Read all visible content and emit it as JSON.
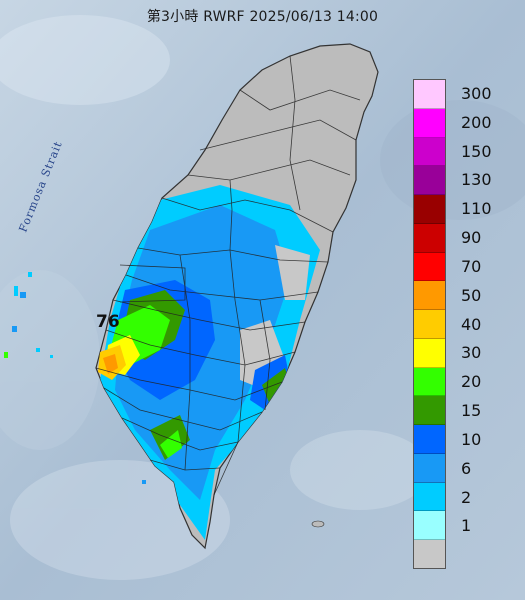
{
  "title": "第3小時  RWRF 2025/06/13 14:00",
  "sea_label": "Formosa Strait",
  "max_value_label": "76",
  "legend": [
    {
      "label": "300",
      "color": "#ffc8ff"
    },
    {
      "label": "200",
      "color": "#ff00ff"
    },
    {
      "label": "150",
      "color": "#cc00cc"
    },
    {
      "label": "130",
      "color": "#990099"
    },
    {
      "label": "110",
      "color": "#990000"
    },
    {
      "label": "90",
      "color": "#cc0000"
    },
    {
      "label": "70",
      "color": "#ff0000"
    },
    {
      "label": "50",
      "color": "#ff9900"
    },
    {
      "label": "40",
      "color": "#ffcc00"
    },
    {
      "label": "30",
      "color": "#ffff00"
    },
    {
      "label": "20",
      "color": "#33ff00"
    },
    {
      "label": "15",
      "color": "#339900"
    },
    {
      "label": "10",
      "color": "#0066ff"
    },
    {
      "label": "6",
      "color": "#1899f5"
    },
    {
      "label": "2",
      "color": "#00ccff"
    },
    {
      "label": "1",
      "color": "#99ffff"
    },
    {
      "label": "",
      "color": "#c8c8c8"
    }
  ]
}
